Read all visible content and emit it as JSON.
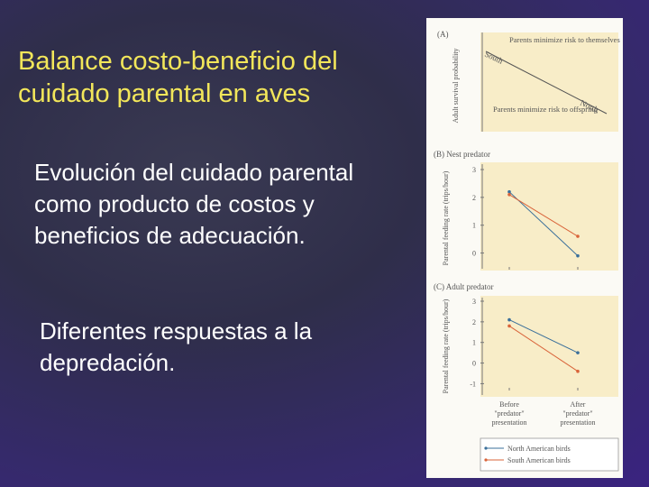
{
  "slide": {
    "title": "Balance costo-beneficio del cuidado parental en aves",
    "paragraph1": "Evolución del cuidado parental como producto de costos y beneficios de adecuación.",
    "paragraph2": "Diferentes respuestas a la depredación."
  },
  "figure": {
    "panelA": {
      "label": "(A)",
      "ylabel": "Adult survival probability",
      "top_annotation": "Parents minimize risk to themselves",
      "bottom_annotation": "Parents minimize risk to offspring",
      "south_label": "South",
      "north_label": "North"
    },
    "panelB": {
      "label": "(B) Nest predator",
      "ylabel": "Parental feeding rate (trips/hour)"
    },
    "panelC": {
      "label": "(C) Adult predator",
      "ylabel": "Parental feeding rate (trips/hour)"
    },
    "xticks": [
      "Before \"predator\" presentation",
      "After \"predator\" presentation"
    ],
    "legend": [
      "North American birds",
      "South American birds"
    ],
    "colors": {
      "north": "#3a6f9a",
      "south": "#d9643a",
      "panel_bg": "#f8edc8"
    }
  },
  "chart_data": [
    {
      "type": "line",
      "title": "(B) Nest predator",
      "ylabel": "Parental feeding rate (trips/hour)",
      "categories": [
        "Before \"predator\" presentation",
        "After \"predator\" presentation"
      ],
      "yticks": [
        3,
        2,
        1,
        0
      ],
      "ylim": [
        -0.5,
        3
      ],
      "series": [
        {
          "name": "North American birds",
          "values": [
            2.2,
            -0.1
          ]
        },
        {
          "name": "South American birds",
          "values": [
            2.1,
            0.6
          ]
        }
      ]
    },
    {
      "type": "line",
      "title": "(C) Adult predator",
      "ylabel": "Parental feeding rate (trips/hour)",
      "categories": [
        "Before \"predator\" presentation",
        "After \"predator\" presentation"
      ],
      "yticks": [
        3,
        2,
        1,
        0,
        -1
      ],
      "ylim": [
        -1.2,
        3
      ],
      "series": [
        {
          "name": "North American birds",
          "values": [
            2.1,
            0.5
          ]
        },
        {
          "name": "South American birds",
          "values": [
            1.8,
            -0.4
          ]
        }
      ]
    }
  ]
}
